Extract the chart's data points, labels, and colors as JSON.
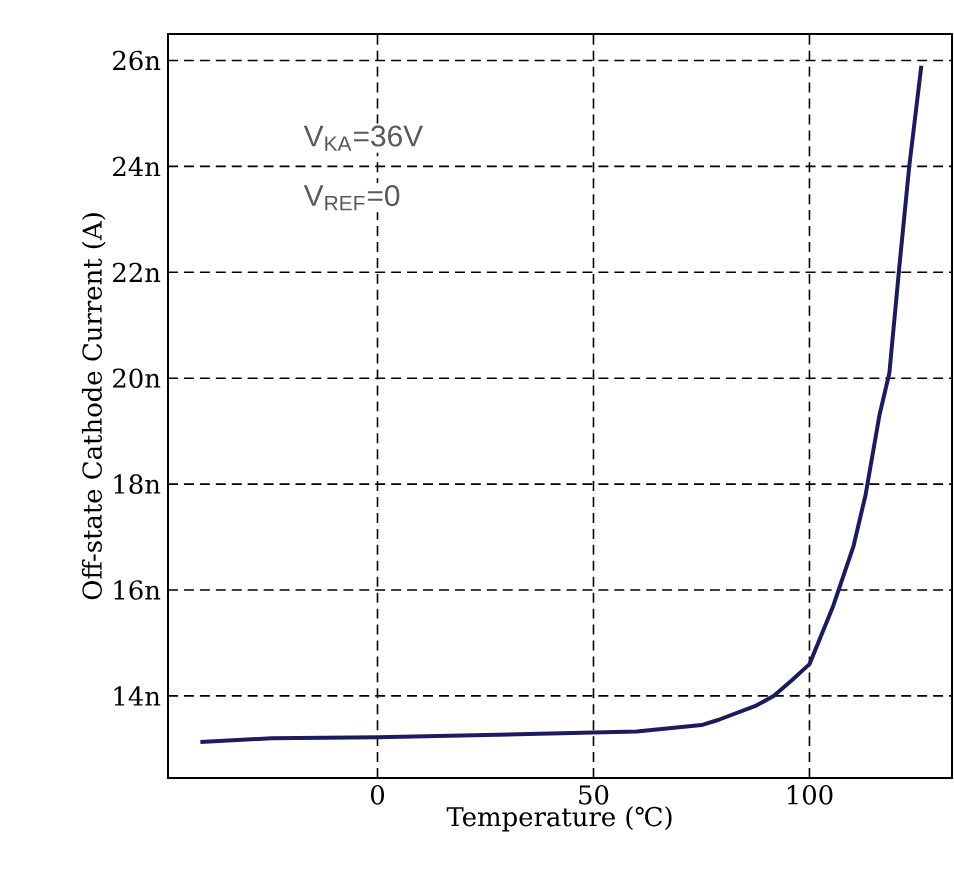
{
  "chart_data": {
    "type": "line",
    "xlabel": "Temperature (℃)",
    "ylabel": "Off-state Cathode Current (A)",
    "annotations": [
      "V$_{KA}$=36V",
      "V$_{REF}$=0"
    ],
    "xlim": [
      -48.5,
      133
    ],
    "ylim": [
      12.45,
      26.5
    ],
    "xticks": [
      0,
      50,
      100
    ],
    "yticks": [
      {
        "value": 14,
        "label": "14n"
      },
      {
        "value": 16,
        "label": "16n"
      },
      {
        "value": 18,
        "label": "18n"
      },
      {
        "value": 20,
        "label": "20n"
      },
      {
        "value": 22,
        "label": "22n"
      },
      {
        "value": 24,
        "label": "24n"
      },
      {
        "value": 26,
        "label": "26n"
      }
    ],
    "grid": true,
    "line_style": "solid",
    "marker": "none",
    "series": [
      {
        "color": "#1c1c5c",
        "x": [
          -41,
          -24.5,
          0,
          35,
          60,
          75,
          79,
          87.5,
          91.7,
          96,
          100,
          105.5,
          110.2,
          113,
          116.2,
          118.5,
          120.8,
          123.1,
          125.9
        ],
        "values": [
          13.13,
          13.2,
          13.22,
          13.28,
          13.33,
          13.45,
          13.55,
          13.81,
          14.0,
          14.3,
          14.6,
          15.7,
          16.83,
          17.8,
          19.3,
          20.1,
          22.1,
          24.0,
          25.9
        ]
      }
    ]
  }
}
